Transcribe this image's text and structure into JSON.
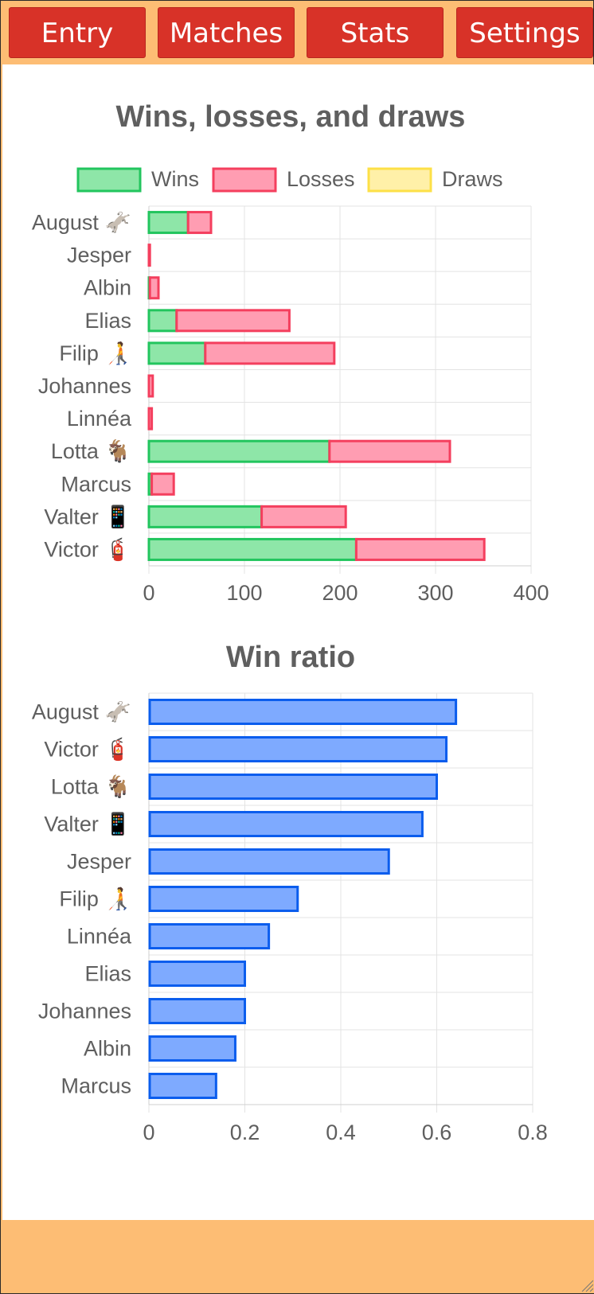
{
  "nav": {
    "tabs": [
      {
        "label": "Entry"
      },
      {
        "label": "Matches"
      },
      {
        "label": "Stats"
      },
      {
        "label": "Settings"
      }
    ]
  },
  "colors": {
    "wins_fill": "#8ee6a8",
    "wins_stroke": "#22c55e",
    "losses_fill": "#ff9db2",
    "losses_stroke": "#f43f5e",
    "draws_fill": "#fff0a8",
    "draws_stroke": "#fde047",
    "ratio_fill": "#7eaaff",
    "ratio_stroke": "#0b5ded",
    "title": "#5f5f5f",
    "label": "#5f5f5f",
    "grid": "#e3e3e3"
  },
  "chart_data": [
    {
      "type": "bar",
      "orientation": "horizontal",
      "stacked": true,
      "title": "Wins, losses, and draws",
      "legend_position": "top",
      "categories": [
        "August 🫏",
        "Jesper",
        "Albin",
        "Elias",
        "Filip 🧑‍🦯",
        "Johannes",
        "Linnéa",
        "Lotta 🐐",
        "Marcus",
        "Valter 📱",
        "Victor 🧯"
      ],
      "series": [
        {
          "name": "Wins",
          "values": [
            41,
            0,
            1,
            29,
            59,
            0,
            0,
            189,
            3,
            118,
            217
          ]
        },
        {
          "name": "Losses",
          "values": [
            24,
            1,
            9,
            118,
            135,
            4,
            3,
            126,
            23,
            88,
            134
          ]
        },
        {
          "name": "Draws",
          "values": [
            0,
            0,
            0,
            0,
            0,
            0,
            0,
            0,
            0,
            0,
            0
          ]
        }
      ],
      "xlim": [
        0,
        400
      ],
      "xticks": [
        "0",
        "100",
        "200",
        "300",
        "400"
      ],
      "grid": true
    },
    {
      "type": "bar",
      "orientation": "horizontal",
      "title": "Win ratio",
      "categories": [
        "August 🫏",
        "Victor 🧯",
        "Lotta 🐐",
        "Valter 📱",
        "Jesper",
        "Filip 🧑‍🦯",
        "Linnéa",
        "Elias",
        "Johannes",
        "Albin",
        "Marcus"
      ],
      "values": [
        0.64,
        0.62,
        0.6,
        0.57,
        0.5,
        0.31,
        0.25,
        0.2,
        0.2,
        0.18,
        0.14
      ],
      "xlim": [
        0,
        0.8
      ],
      "xticks": [
        "0",
        "0.2",
        "0.4",
        "0.6",
        "0.8"
      ],
      "grid": true
    }
  ]
}
